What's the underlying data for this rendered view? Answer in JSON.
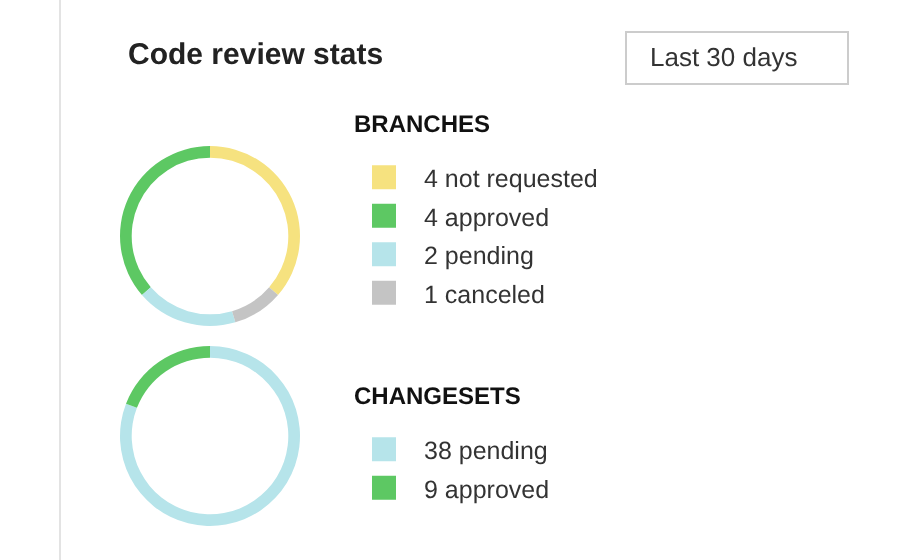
{
  "chart_data": [
    {
      "type": "other",
      "title": "Code review stats",
      "annotations": [
        "Last 30 days"
      ]
    },
    {
      "type": "donut",
      "title": "BRANCHES",
      "categories": [
        "4 not requested",
        "4 approved",
        "2 pending",
        "1 canceled"
      ],
      "values": [
        4,
        4,
        2,
        1
      ],
      "colors": [
        "#f6e27f",
        "#5dc863",
        "#b6e4ea",
        "#c4c4c4"
      ],
      "legend": "right"
    },
    {
      "type": "donut",
      "title": "CHANGESETS",
      "categories": [
        "38 pending",
        "9 approved"
      ],
      "values": [
        38,
        9
      ],
      "colors": [
        "#b6e4ea",
        "#5dc863"
      ],
      "legend": "right"
    }
  ]
}
